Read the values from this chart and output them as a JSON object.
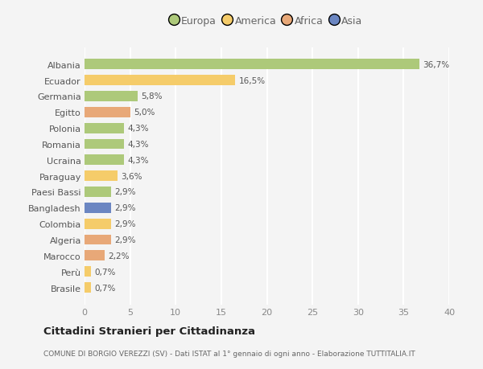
{
  "countries": [
    "Brasile",
    "Perù",
    "Marocco",
    "Algeria",
    "Colombia",
    "Bangladesh",
    "Paesi Bassi",
    "Paraguay",
    "Ucraina",
    "Romania",
    "Polonia",
    "Egitto",
    "Germania",
    "Ecuador",
    "Albania"
  ],
  "values": [
    0.7,
    0.7,
    2.2,
    2.9,
    2.9,
    2.9,
    2.9,
    3.6,
    4.3,
    4.3,
    4.3,
    5.0,
    5.8,
    16.5,
    36.7
  ],
  "labels": [
    "0,7%",
    "0,7%",
    "2,2%",
    "2,9%",
    "2,9%",
    "2,9%",
    "2,9%",
    "3,6%",
    "4,3%",
    "4,3%",
    "4,3%",
    "5,0%",
    "5,8%",
    "16,5%",
    "36,7%"
  ],
  "colors": [
    "#f5cc6a",
    "#f5cc6a",
    "#e8a878",
    "#e8a878",
    "#f5cc6a",
    "#6b86c2",
    "#adc97a",
    "#f5cc6a",
    "#adc97a",
    "#adc97a",
    "#adc97a",
    "#e8a878",
    "#adc97a",
    "#f5cc6a",
    "#adc97a"
  ],
  "legend": [
    {
      "label": "Europa",
      "color": "#adc97a"
    },
    {
      "label": "America",
      "color": "#f5cc6a"
    },
    {
      "label": "Africa",
      "color": "#e8a878"
    },
    {
      "label": "Asia",
      "color": "#6b86c2"
    }
  ],
  "title": "Cittadini Stranieri per Cittadinanza",
  "subtitle": "COMUNE DI BORGIO VEREZZI (SV) - Dati ISTAT al 1° gennaio di ogni anno - Elaborazione TUTTITALIA.IT",
  "xlim": [
    0,
    40
  ],
  "xticks": [
    0,
    5,
    10,
    15,
    20,
    25,
    30,
    35,
    40
  ],
  "background_color": "#f4f4f4",
  "plot_bg_color": "#f4f4f4",
  "grid_color": "#ffffff",
  "bar_height": 0.65
}
